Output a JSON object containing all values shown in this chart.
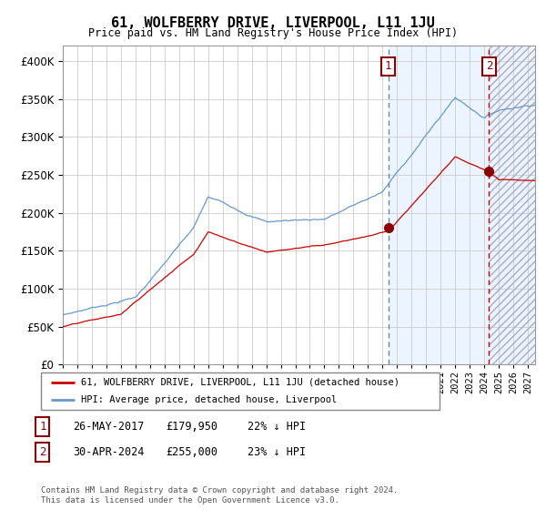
{
  "title": "61, WOLFBERRY DRIVE, LIVERPOOL, L11 1JU",
  "subtitle": "Price paid vs. HM Land Registry's House Price Index (HPI)",
  "ylim": [
    0,
    420000
  ],
  "yticks": [
    0,
    50000,
    100000,
    150000,
    200000,
    250000,
    300000,
    350000,
    400000
  ],
  "hpi_color": "#6699cc",
  "price_color": "#cc0000",
  "dot_color": "#8b0000",
  "marker1_date_x": 2017.4,
  "marker2_date_x": 2024.33,
  "marker1_price": 179950,
  "marker2_price": 255000,
  "sale1_label": "1",
  "sale2_label": "2",
  "sale1_date": "26-MAY-2017",
  "sale2_date": "30-APR-2024",
  "sale1_pct": "22% ↓ HPI",
  "sale2_pct": "23% ↓ HPI",
  "legend_price": "61, WOLFBERRY DRIVE, LIVERPOOL, L11 1JU (detached house)",
  "legend_hpi": "HPI: Average price, detached house, Liverpool",
  "footnote1": "Contains HM Land Registry data © Crown copyright and database right 2024.",
  "footnote2": "This data is licensed under the Open Government Licence v3.0.",
  "xmin": 1995.0,
  "xmax": 2027.5,
  "future_start": 2024.33,
  "bg_shade_start": 2017.4,
  "bg_shade_color": "#ddeeff"
}
